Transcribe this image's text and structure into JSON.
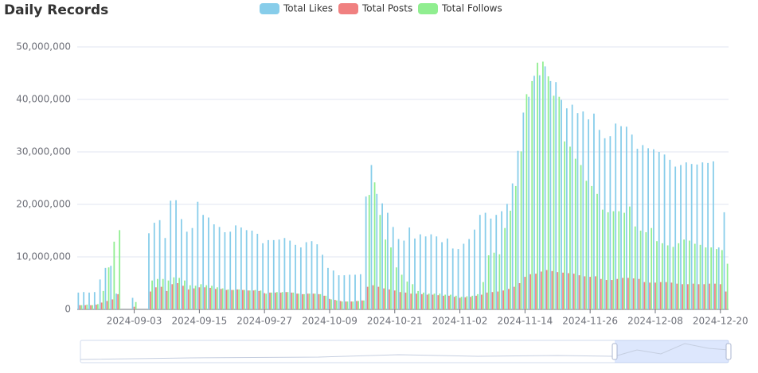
{
  "chart_data": {
    "type": "bar",
    "title": "Daily Records",
    "categories": [
      null,
      null,
      null,
      null,
      null,
      null,
      null,
      null,
      null,
      null,
      "2024-09-03",
      null,
      null,
      null,
      null,
      null,
      null,
      null,
      null,
      null,
      null,
      null,
      "2024-09-15",
      null,
      null,
      null,
      null,
      null,
      null,
      null,
      null,
      null,
      null,
      null,
      "2024-09-27",
      null,
      null,
      null,
      null,
      null,
      null,
      null,
      null,
      null,
      null,
      null,
      "2024-10-09",
      null,
      null,
      null,
      null,
      null,
      null,
      null,
      null,
      null,
      null,
      null,
      "2024-10-21",
      null,
      null,
      null,
      null,
      null,
      null,
      null,
      null,
      null,
      null,
      null,
      "2024-11-02",
      null,
      null,
      null,
      null,
      null,
      null,
      null,
      null,
      null,
      null,
      null,
      "2024-11-14",
      null,
      null,
      null,
      null,
      null,
      null,
      null,
      null,
      null,
      null,
      null,
      "2024-11-26",
      null,
      null,
      null,
      null,
      null,
      null,
      null,
      null,
      null,
      null,
      null,
      "2024-12-08",
      null,
      null,
      null,
      null,
      null,
      null,
      null,
      null,
      null,
      null,
      null,
      "2024-12-20",
      null
    ],
    "series": [
      {
        "name": "Total Likes",
        "color": "#87cdea",
        "values": [
          3200000,
          3300000,
          3200000,
          3300000,
          5700000,
          7900000,
          8300000,
          3000000,
          0,
          0,
          2200000,
          0,
          0,
          14500000,
          16500000,
          17000000,
          13600000,
          20700000,
          20800000,
          17200000,
          14800000,
          15500000,
          20500000,
          18000000,
          17500000,
          16200000,
          15700000,
          14700000,
          14800000,
          16000000,
          15600000,
          15100000,
          15000000,
          14400000,
          12600000,
          13200000,
          13200000,
          13300000,
          13600000,
          13100000,
          12300000,
          11800000,
          12800000,
          13000000,
          12400000,
          10400000,
          7900000,
          7400000,
          6500000,
          6500000,
          6600000,
          6600000,
          6700000,
          21500000,
          27500000,
          22000000,
          20200000,
          18400000,
          15700000,
          13400000,
          13100000,
          15600000,
          13500000,
          14300000,
          13900000,
          14300000,
          13900000,
          12800000,
          13500000,
          11600000,
          11500000,
          12500000,
          13400000,
          15200000,
          18000000,
          18400000,
          17300000,
          18000000,
          18700000,
          20100000,
          24000000,
          30200000,
          37500000,
          40500000,
          44500000,
          44600000,
          46300000,
          43500000,
          43300000,
          39900000,
          38300000,
          39000000,
          37400000,
          37700000,
          36200000,
          37300000,
          34200000,
          32600000,
          33000000,
          35400000,
          34900000,
          34800000,
          33300000,
          30600000,
          31300000,
          30700000,
          30500000,
          30000000,
          29500000,
          28500000,
          27200000,
          27500000,
          28000000,
          27700000,
          27600000,
          28000000,
          27900000,
          28200000,
          11800000,
          18500000
        ]
      },
      {
        "name": "Total Posts",
        "color": "#f08080",
        "values": [
          800000,
          800000,
          800000,
          900000,
          1300000,
          1600000,
          1900000,
          2900000,
          0,
          0,
          500000,
          0,
          0,
          3400000,
          4200000,
          4300000,
          3500000,
          4800000,
          5000000,
          4500000,
          3800000,
          4000000,
          4200000,
          4200000,
          4100000,
          3900000,
          3900000,
          3700000,
          3700000,
          3800000,
          3700000,
          3600000,
          3600000,
          3500000,
          3100000,
          3200000,
          3200000,
          3200000,
          3300000,
          3200000,
          3000000,
          2900000,
          3000000,
          3000000,
          2900000,
          2600000,
          2000000,
          1800000,
          1600000,
          1500000,
          1500000,
          1600000,
          1700000,
          4300000,
          4600000,
          4300000,
          4000000,
          3800000,
          3600000,
          3300000,
          3200000,
          3000000,
          3000000,
          2900000,
          2800000,
          2800000,
          2700000,
          2600000,
          2600000,
          2400000,
          2200000,
          2300000,
          2400000,
          2600000,
          2800000,
          3200000,
          3300000,
          3400000,
          3600000,
          3900000,
          4300000,
          5000000,
          6200000,
          6700000,
          6800000,
          7200000,
          7500000,
          7300000,
          7100000,
          7000000,
          6900000,
          6800000,
          6500000,
          6300000,
          6200000,
          6300000,
          5800000,
          5600000,
          5600000,
          5800000,
          6000000,
          6000000,
          5900000,
          5800000,
          5200000,
          5100000,
          5100000,
          5200000,
          5200000,
          5100000,
          4900000,
          4800000,
          4800000,
          4900000,
          4800000,
          4800000,
          4900000,
          4900000,
          4800000,
          3400000
        ]
      },
      {
        "name": "Total Follows",
        "color": "#90ee90",
        "values": [
          800000,
          900000,
          800000,
          1000000,
          3500000,
          8000000,
          12900000,
          15100000,
          0,
          0,
          1400000,
          0,
          0,
          5500000,
          5800000,
          5800000,
          5500000,
          6100000,
          6000000,
          5500000,
          4600000,
          4500000,
          4800000,
          4600000,
          4500000,
          4200000,
          4000000,
          3800000,
          3700000,
          3800000,
          3700000,
          3600000,
          3700000,
          3600000,
          3000000,
          3200000,
          3300000,
          3300000,
          3300000,
          3200000,
          3000000,
          2900000,
          3000000,
          3000000,
          2900000,
          2600000,
          1900000,
          1700000,
          1500000,
          1500000,
          1500000,
          1600000,
          1700000,
          21800000,
          24200000,
          18000000,
          13300000,
          11800000,
          8000000,
          6600000,
          5300000,
          4800000,
          3500000,
          3200000,
          3000000,
          3000000,
          3000000,
          2800000,
          2800000,
          2600000,
          2400000,
          2500000,
          2600000,
          2900000,
          5200000,
          10300000,
          10800000,
          10500000,
          15500000,
          18800000,
          23500000,
          30100000,
          41000000,
          43500000,
          47000000,
          47200000,
          44400000,
          40700000,
          40500000,
          32000000,
          31000000,
          28700000,
          27500000,
          24500000,
          23500000,
          22000000,
          19000000,
          18500000,
          18700000,
          18700000,
          18400000,
          19600000,
          15800000,
          15000000,
          14700000,
          15500000,
          13000000,
          12600000,
          12200000,
          11900000,
          12600000,
          13300000,
          13100000,
          12500000,
          12300000,
          11800000,
          11800000,
          11500000,
          11300000,
          8700000
        ]
      }
    ],
    "ylim": [
      0,
      50000000
    ],
    "yticks": [
      0,
      {
        "value": 10000000,
        "label": "10,000,000"
      },
      {
        "value": 20000000,
        "label": "20,000,000"
      },
      {
        "value": 30000000,
        "label": "30,000,000"
      },
      {
        "value": 40000000,
        "label": "40,000,000"
      },
      {
        "value": 50000000,
        "label": "50,000,000"
      }
    ],
    "grid": true,
    "legend": "top"
  }
}
